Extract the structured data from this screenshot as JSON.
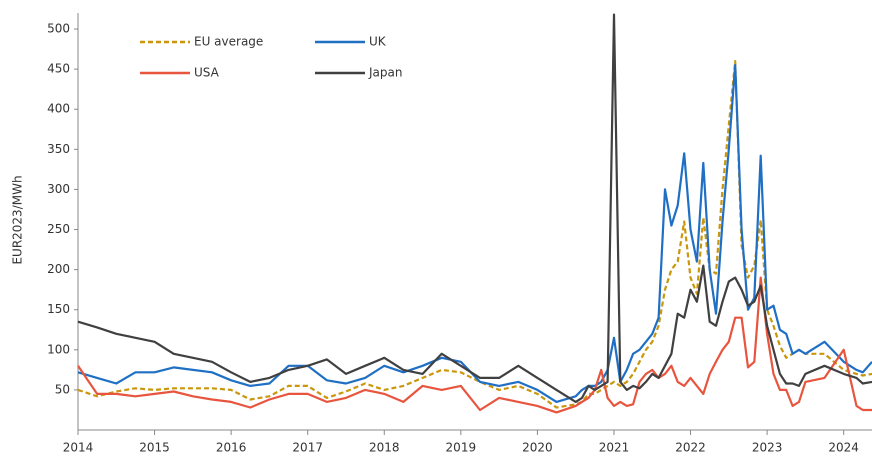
{
  "chart_data": {
    "type": "line",
    "y_label": "EUR2023/MWh",
    "legend": "upper left",
    "grid": false,
    "xlim": [
      2014,
      2024.37
    ],
    "xticks": [
      2014,
      2015,
      2016,
      2017,
      2018,
      2019,
      2020,
      2021,
      2022,
      2023,
      2024
    ],
    "ylim": [
      0,
      520
    ],
    "yticks": [
      50,
      100,
      150,
      200,
      250,
      300,
      350,
      400,
      450,
      500
    ],
    "x": [
      2014,
      2014.25,
      2014.5,
      2014.75,
      2015,
      2015.25,
      2015.5,
      2015.75,
      2016,
      2016.25,
      2016.5,
      2016.75,
      2017,
      2017.25,
      2017.5,
      2017.75,
      2018,
      2018.25,
      2018.5,
      2018.75,
      2019,
      2019.25,
      2019.5,
      2019.75,
      2020,
      2020.25,
      2020.5,
      2020.583,
      2020.667,
      2020.75,
      2020.833,
      2020.917,
      2021,
      2021.083,
      2021.167,
      2021.25,
      2021.333,
      2021.417,
      2021.5,
      2021.583,
      2021.667,
      2021.75,
      2021.833,
      2021.917,
      2022,
      2022.083,
      2022.167,
      2022.25,
      2022.333,
      2022.417,
      2022.5,
      2022.583,
      2022.667,
      2022.75,
      2022.833,
      2022.917,
      2023,
      2023.083,
      2023.167,
      2023.25,
      2023.333,
      2023.417,
      2023.5,
      2023.75,
      2024,
      2024.167,
      2024.25,
      2024.37
    ],
    "series": [
      {
        "name": "EU average",
        "color": "#c9960c",
        "style": "dashed",
        "values": [
          50,
          42,
          48,
          52,
          50,
          52,
          52,
          52,
          50,
          38,
          42,
          55,
          55,
          40,
          48,
          58,
          50,
          55,
          65,
          75,
          72,
          60,
          50,
          55,
          45,
          28,
          32,
          35,
          45,
          45,
          50,
          55,
          60,
          55,
          60,
          70,
          85,
          100,
          110,
          130,
          175,
          200,
          210,
          260,
          190,
          170,
          265,
          200,
          195,
          300,
          380,
          460,
          230,
          190,
          205,
          262,
          150,
          130,
          105,
          90,
          95,
          100,
          95,
          95,
          75,
          70,
          68,
          70
        ]
      },
      {
        "name": "UK",
        "color": "#1f6fc5",
        "style": "solid",
        "values": [
          72,
          65,
          58,
          72,
          72,
          78,
          75,
          72,
          62,
          55,
          58,
          80,
          80,
          62,
          58,
          65,
          80,
          72,
          80,
          90,
          85,
          60,
          55,
          60,
          50,
          35,
          42,
          50,
          55,
          55,
          60,
          75,
          115,
          60,
          75,
          95,
          100,
          110,
          120,
          140,
          300,
          255,
          280,
          345,
          250,
          210,
          333,
          200,
          145,
          260,
          350,
          455,
          250,
          150,
          165,
          342,
          150,
          155,
          125,
          120,
          95,
          100,
          95,
          110,
          85,
          75,
          72,
          85
        ]
      },
      {
        "name": "USA",
        "color": "#e8553e",
        "style": "solid",
        "values": [
          80,
          45,
          45,
          42,
          45,
          48,
          42,
          38,
          35,
          28,
          38,
          45,
          45,
          35,
          40,
          50,
          45,
          35,
          55,
          50,
          55,
          25,
          40,
          35,
          30,
          22,
          30,
          35,
          40,
          50,
          75,
          40,
          30,
          35,
          30,
          32,
          60,
          70,
          75,
          65,
          70,
          80,
          60,
          55,
          65,
          55,
          45,
          70,
          85,
          100,
          110,
          140,
          140,
          78,
          85,
          190,
          120,
          70,
          50,
          50,
          30,
          35,
          60,
          65,
          100,
          30,
          25,
          25
        ]
      },
      {
        "name": "Japan",
        "color": "#404040",
        "style": "solid",
        "values": [
          135,
          128,
          120,
          115,
          110,
          95,
          90,
          85,
          72,
          60,
          65,
          75,
          80,
          88,
          70,
          80,
          90,
          75,
          70,
          95,
          80,
          65,
          65,
          80,
          65,
          50,
          35,
          40,
          55,
          50,
          55,
          60,
          518,
          60,
          50,
          55,
          52,
          60,
          70,
          65,
          80,
          95,
          145,
          140,
          175,
          160,
          205,
          135,
          130,
          160,
          185,
          190,
          175,
          155,
          160,
          180,
          130,
          100,
          70,
          58,
          58,
          55,
          70,
          80,
          70,
          65,
          58,
          60
        ]
      }
    ]
  }
}
